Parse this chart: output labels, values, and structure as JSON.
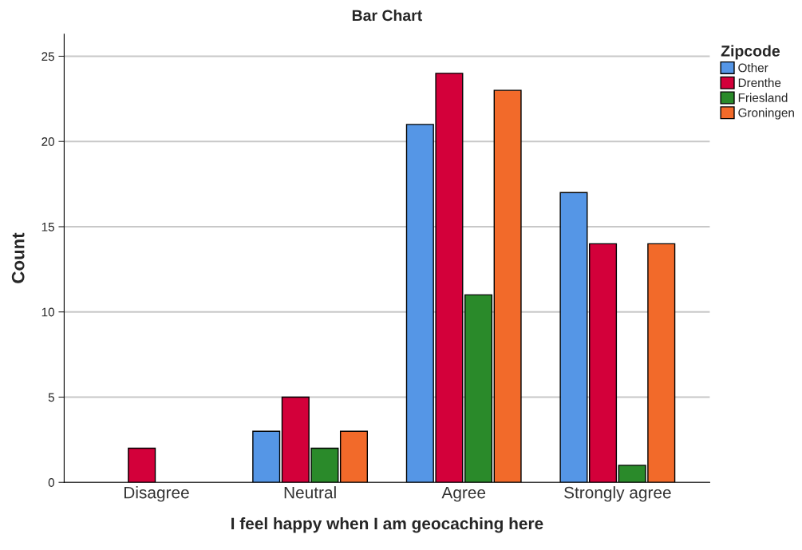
{
  "chart_data": {
    "type": "bar",
    "title": "Bar Chart",
    "xlabel": "I feel happy when I am geocaching here",
    "ylabel": "Count",
    "legend_title": "Zipcode",
    "categories": [
      "Disagree",
      "Neutral",
      "Agree",
      "Strongly agree"
    ],
    "series": [
      {
        "name": "Other",
        "color": "#5596e6",
        "values": [
          null,
          3,
          21,
          17
        ]
      },
      {
        "name": "Drenthe",
        "color": "#d3003a",
        "values": [
          2,
          5,
          24,
          14
        ]
      },
      {
        "name": "Friesland",
        "color": "#2a8a2a",
        "values": [
          null,
          2,
          11,
          1
        ]
      },
      {
        "name": "Groningen",
        "color": "#f26a2a",
        "values": [
          null,
          3,
          23,
          14
        ]
      }
    ],
    "ylim": [
      0,
      26.3
    ],
    "yticks": [
      0,
      5,
      10,
      15,
      20,
      25
    ],
    "grid": "y",
    "legend": "top right"
  }
}
